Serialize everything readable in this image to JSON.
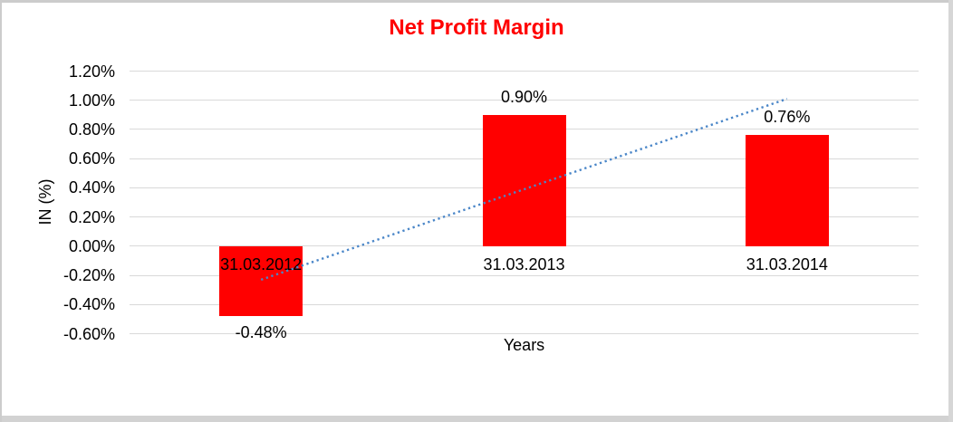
{
  "window": {
    "background": "#ffffff",
    "frame_border_color": "#cccccc"
  },
  "chart_data": {
    "type": "bar",
    "title": "Net Profit Margin",
    "title_color": "#ff0000",
    "xlabel": "Years",
    "ylabel": "IN (%)",
    "categories": [
      "31.03.2012",
      "31.03.2013",
      "31.03.2014"
    ],
    "series": [
      {
        "name": "Net Profit Margin",
        "values": [
          -0.48,
          0.9,
          0.76
        ],
        "data_labels": [
          "-0.48%",
          "0.90%",
          "0.76%"
        ],
        "bar_color": "#ff0000"
      }
    ],
    "y_axis": {
      "min": -0.6,
      "max": 1.2,
      "step": 0.2,
      "tick_labels": [
        "1.20%",
        "1.00%",
        "0.80%",
        "0.60%",
        "0.40%",
        "0.20%",
        "0.00%",
        "-0.20%",
        "-0.40%",
        "-0.60%"
      ],
      "tick_values": [
        1.2,
        1.0,
        0.8,
        0.6,
        0.4,
        0.2,
        0.0,
        -0.2,
        -0.4,
        -0.6
      ]
    },
    "gridlines": true,
    "gridline_color": "#d9d9d9",
    "legend": "none",
    "trendline": {
      "type": "linear",
      "style": "dotted",
      "color": "#4a86c8",
      "start_category_index": 0,
      "end_category_index": 2,
      "start_value": -0.23,
      "end_value": 1.01
    },
    "text_color": "#000000"
  }
}
